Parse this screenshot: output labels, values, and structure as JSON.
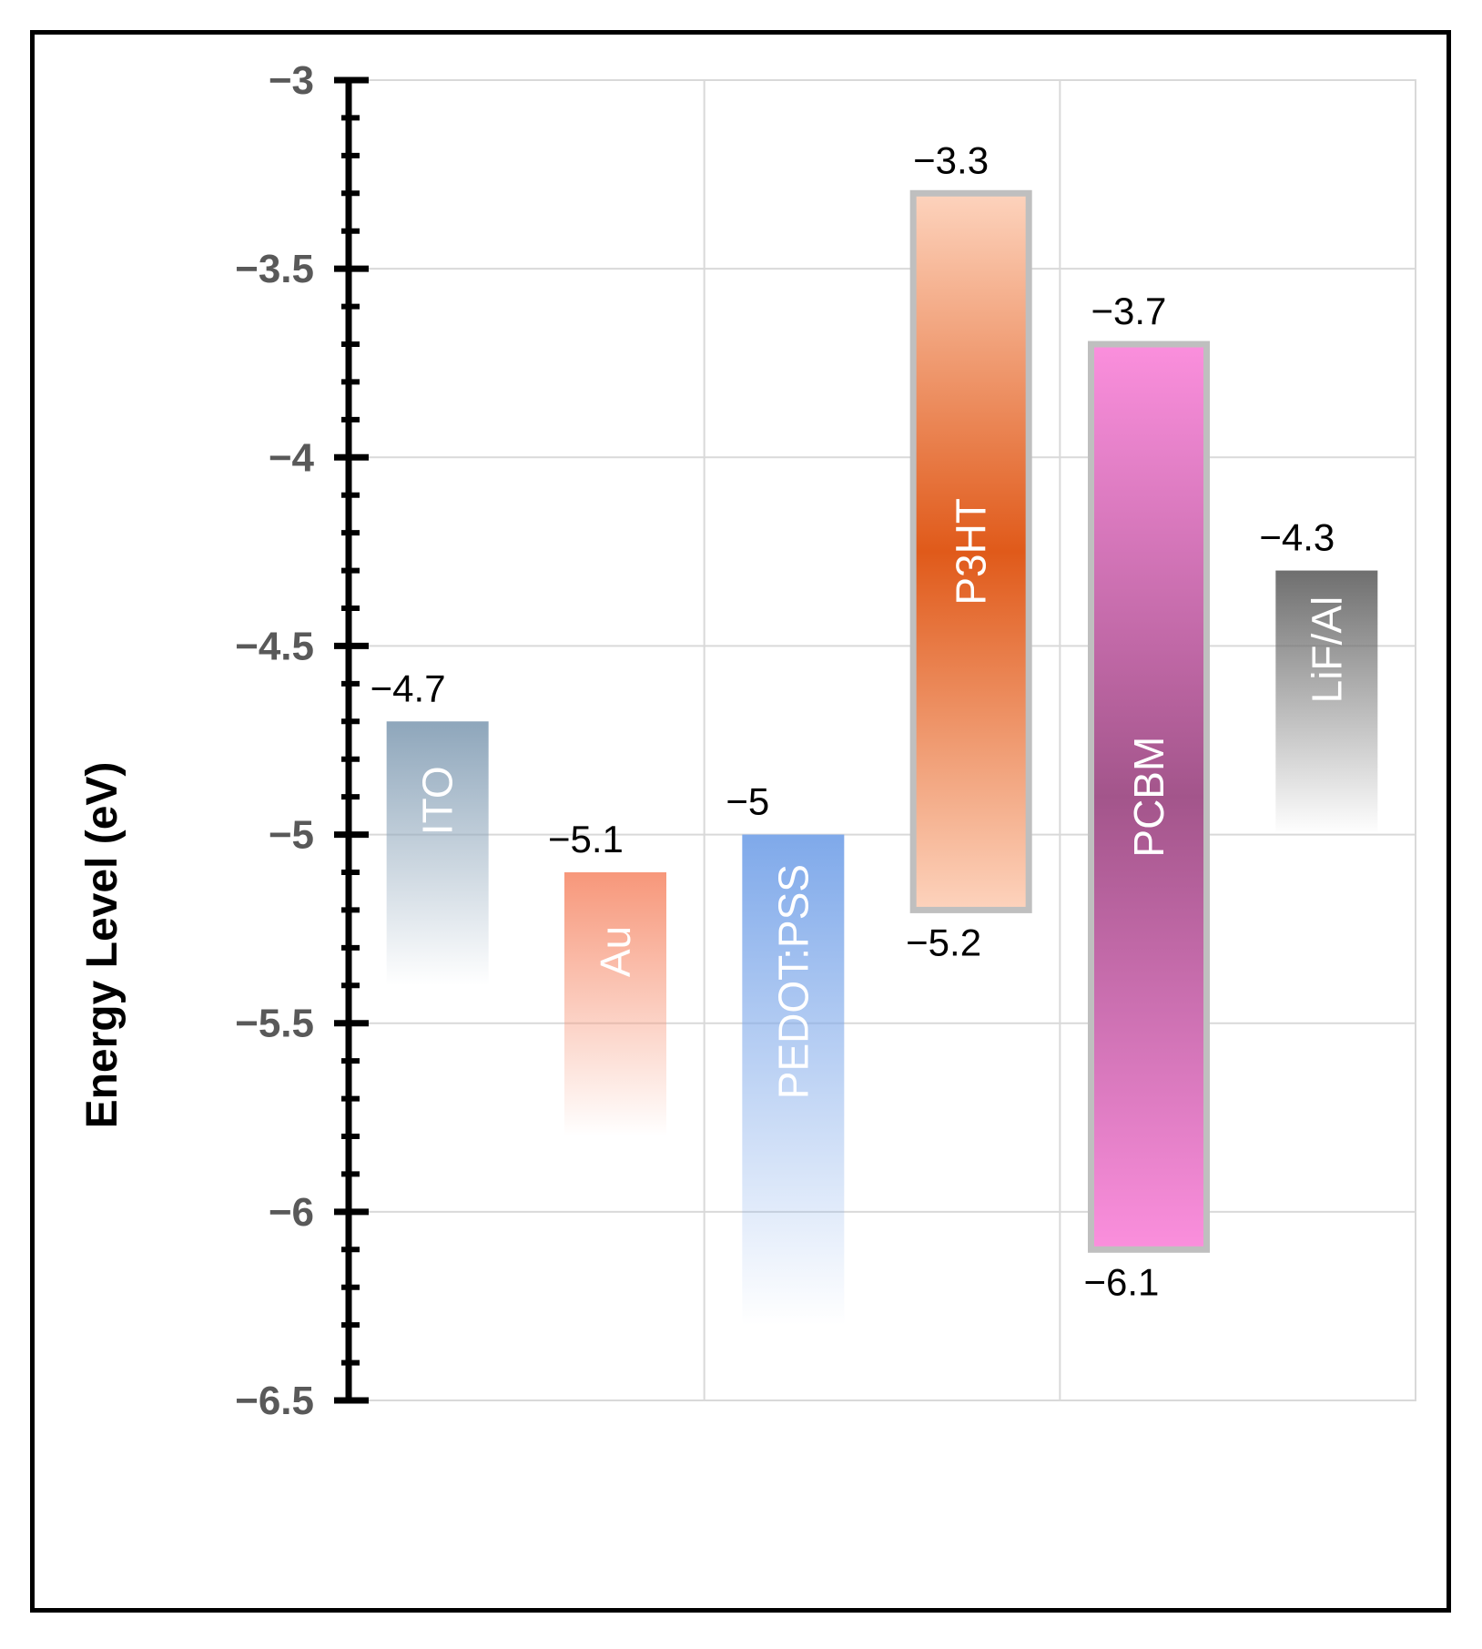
{
  "chart_data": {
    "type": "bar",
    "subtype": "floating energy-level diagram",
    "title": "",
    "xlabel": "",
    "ylabel": "Energy Level (eV)",
    "ylim": [
      -6.5,
      -3
    ],
    "ytick_step": 0.5,
    "yticks": [
      "−3",
      "−3.5",
      "−4",
      "−4.5",
      "−5",
      "−5.5",
      "−6",
      "−6.5"
    ],
    "grid": true,
    "series": [
      {
        "name": "ITO",
        "top": -4.7,
        "bottom": -5.4,
        "top_label": "−4.7",
        "bottom_label": "",
        "style": "fade",
        "color": "#8ea6bb",
        "text_color": "#ffffff"
      },
      {
        "name": "Au",
        "top": -5.1,
        "bottom": -5.8,
        "top_label": "−5.1",
        "bottom_label": "",
        "style": "fade",
        "color": "#f7977a",
        "text_color": "#ffffff"
      },
      {
        "name": "PEDOT:PSS",
        "top": -5.0,
        "bottom": -6.3,
        "top_label": "−5",
        "bottom_label": "",
        "style": "fade",
        "color": "#7fa9ea",
        "text_color": "#ffffff"
      },
      {
        "name": "P3HT",
        "top": -3.3,
        "bottom": -5.2,
        "top_label": "−3.3",
        "bottom_label": "−5.2",
        "style": "band",
        "color": "#e05a1a",
        "edge_color": "#fdd3bd",
        "text_color": "#ffffff"
      },
      {
        "name": "PCBM",
        "top": -3.7,
        "bottom": -6.1,
        "top_label": "−3.7",
        "bottom_label": "−6.1",
        "style": "band",
        "color": "#a3558b",
        "edge_color": "#fb8fdd",
        "text_color": "#ffffff"
      },
      {
        "name": "LiF/Al",
        "top": -4.3,
        "bottom": -5.0,
        "top_label": "−4.3",
        "bottom_label": "",
        "style": "fade",
        "color": "#6f6f6f",
        "text_color": "#ffffff"
      }
    ],
    "colors": {
      "axis": "#000000",
      "grid": "#d9d9d9",
      "tick_label": "#595959",
      "band_border": "#bfbfbf"
    }
  }
}
